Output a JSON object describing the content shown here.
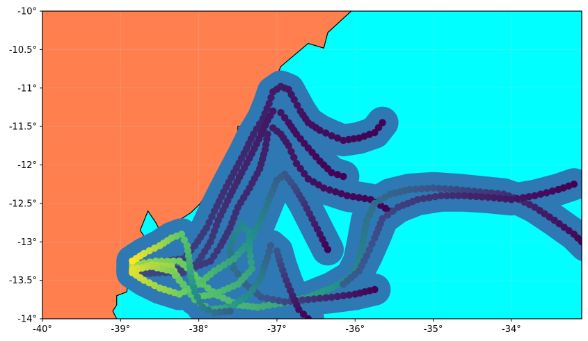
{
  "map": {
    "extent": {
      "lon": [
        -40,
        -33.1
      ],
      "lat": [
        -14,
        -10
      ]
    },
    "colors": {
      "land": "#ff7f4f",
      "ocean": "#00ffff",
      "coastline": "#000000",
      "buffer": "#2e78b4",
      "gridline": "#cccccc",
      "track_colormap": [
        "#440154",
        "#3b528b",
        "#21918c",
        "#5ec962",
        "#fde725"
      ]
    },
    "grid": true,
    "x_ticks": [
      {
        "value": -40,
        "label": "-40°"
      },
      {
        "value": -39,
        "label": "-39°"
      },
      {
        "value": -38,
        "label": "-38°"
      },
      {
        "value": -37,
        "label": "-37°"
      },
      {
        "value": -36,
        "label": "-36°"
      },
      {
        "value": -35,
        "label": "-35°"
      },
      {
        "value": -34,
        "label": "-34°"
      }
    ],
    "y_ticks": [
      {
        "value": -10,
        "label": "-10°"
      },
      {
        "value": -10.5,
        "label": "-10.5°"
      },
      {
        "value": -11,
        "label": "-11°"
      },
      {
        "value": -11.5,
        "label": "-11.5°"
      },
      {
        "value": -12,
        "label": "-12°"
      },
      {
        "value": -12.5,
        "label": "-12.5°"
      },
      {
        "value": -13,
        "label": "-13°"
      },
      {
        "value": -13.5,
        "label": "-13.5°"
      },
      {
        "value": -14,
        "label": "-14°"
      }
    ],
    "coastline": [
      [
        -36.05,
        -10.0
      ],
      [
        -36.35,
        -10.28
      ],
      [
        -36.4,
        -10.48
      ],
      [
        -36.6,
        -10.42
      ],
      [
        -36.95,
        -10.72
      ],
      [
        -37.05,
        -10.95
      ],
      [
        -37.05,
        -11.05
      ],
      [
        -37.12,
        -11.08
      ],
      [
        -37.2,
        -11.35
      ],
      [
        -37.35,
        -11.52
      ],
      [
        -37.5,
        -11.5
      ],
      [
        -37.5,
        -11.6
      ],
      [
        -37.62,
        -11.82
      ],
      [
        -37.8,
        -12.2
      ],
      [
        -37.98,
        -12.5
      ],
      [
        -38.1,
        -12.62
      ],
      [
        -38.3,
        -12.75
      ],
      [
        -38.4,
        -12.9
      ],
      [
        -38.5,
        -12.85
      ],
      [
        -38.55,
        -12.75
      ],
      [
        -38.65,
        -12.6
      ],
      [
        -38.75,
        -12.85
      ],
      [
        -38.62,
        -13.05
      ],
      [
        -38.72,
        -13.05
      ],
      [
        -38.8,
        -13.12
      ],
      [
        -38.88,
        -13.22
      ],
      [
        -38.92,
        -13.38
      ],
      [
        -39.05,
        -13.38
      ],
      [
        -38.9,
        -13.4
      ],
      [
        -38.92,
        -13.65
      ],
      [
        -39.05,
        -13.7
      ],
      [
        -39.05,
        -13.82
      ],
      [
        -39.1,
        -13.9
      ],
      [
        -39.05,
        -14.0
      ]
    ]
  },
  "chart_data": {
    "type": "scatter",
    "x_range": [
      -40,
      -33.1
    ],
    "y_range": [
      -14,
      -10
    ],
    "grid": true,
    "title": "",
    "xlabel": "",
    "ylabel": "",
    "series": [
      {
        "color_start": 0.0,
        "color_end": 0.22,
        "points": [
          [
            -35.65,
            -11.45
          ],
          [
            -35.75,
            -11.58
          ],
          [
            -35.95,
            -11.65
          ],
          [
            -36.15,
            -11.68
          ],
          [
            -36.3,
            -11.62
          ],
          [
            -36.45,
            -11.55
          ],
          [
            -36.6,
            -11.45
          ],
          [
            -36.7,
            -11.3
          ],
          [
            -36.78,
            -11.15
          ],
          [
            -36.85,
            -11.02
          ],
          [
            -36.95,
            -10.98
          ],
          [
            -37.05,
            -11.05
          ],
          [
            -37.1,
            -11.2
          ],
          [
            -37.18,
            -11.4
          ],
          [
            -37.3,
            -11.6
          ],
          [
            -37.42,
            -11.85
          ],
          [
            -37.55,
            -12.1
          ],
          [
            -37.68,
            -12.35
          ],
          [
            -37.8,
            -12.6
          ],
          [
            -37.9,
            -12.82
          ],
          [
            -38.05,
            -13.05
          ],
          [
            -38.2,
            -13.22
          ],
          [
            -38.45,
            -13.25
          ],
          [
            -38.7,
            -13.3
          ],
          [
            -38.85,
            -13.35
          ]
        ]
      },
      {
        "color_start": 0.0,
        "color_end": 0.22,
        "points": [
          [
            -36.15,
            -12.15
          ],
          [
            -36.3,
            -12.1
          ],
          [
            -36.45,
            -11.95
          ],
          [
            -36.6,
            -11.78
          ],
          [
            -36.75,
            -11.6
          ],
          [
            -36.85,
            -11.45
          ],
          [
            -36.95,
            -11.32
          ],
          [
            -37.05,
            -11.3
          ],
          [
            -37.12,
            -11.42
          ],
          [
            -37.2,
            -11.6
          ],
          [
            -37.32,
            -11.85
          ],
          [
            -37.45,
            -12.1
          ],
          [
            -37.6,
            -12.4
          ],
          [
            -37.75,
            -12.72
          ],
          [
            -37.85,
            -13.0
          ],
          [
            -38.0,
            -13.25
          ],
          [
            -38.2,
            -13.4
          ],
          [
            -38.5,
            -13.4
          ],
          [
            -38.75,
            -13.42
          ]
        ]
      },
      {
        "color_start": 0.0,
        "color_end": 0.2,
        "points": [
          [
            -35.55,
            -12.6
          ],
          [
            -35.8,
            -12.45
          ],
          [
            -36.1,
            -12.4
          ],
          [
            -36.4,
            -12.3
          ],
          [
            -36.6,
            -12.18
          ],
          [
            -36.75,
            -11.98
          ],
          [
            -36.85,
            -11.75
          ],
          [
            -36.95,
            -11.6
          ],
          [
            -37.05,
            -11.52
          ],
          [
            -37.12,
            -11.6
          ],
          [
            -37.15,
            -11.8
          ],
          [
            -37.22,
            -12.05
          ],
          [
            -37.35,
            -12.3
          ],
          [
            -37.5,
            -12.55
          ],
          [
            -37.6,
            -12.82
          ],
          [
            -37.72,
            -13.05
          ],
          [
            -37.85,
            -13.25
          ],
          [
            -38.1,
            -13.35
          ],
          [
            -38.5,
            -13.35
          ]
        ]
      },
      {
        "color_start": 0.0,
        "color_end": 0.85,
        "points": [
          [
            -33.05,
            -13.05
          ],
          [
            -33.2,
            -12.9
          ],
          [
            -33.45,
            -12.72
          ],
          [
            -33.7,
            -12.55
          ],
          [
            -33.9,
            -12.45
          ],
          [
            -34.1,
            -12.38
          ],
          [
            -34.4,
            -12.35
          ],
          [
            -34.7,
            -12.32
          ],
          [
            -35.0,
            -12.3
          ],
          [
            -35.3,
            -12.32
          ],
          [
            -35.55,
            -12.38
          ],
          [
            -35.75,
            -12.5
          ],
          [
            -35.85,
            -12.72
          ],
          [
            -35.9,
            -13.0
          ],
          [
            -35.95,
            -13.25
          ],
          [
            -36.05,
            -13.45
          ],
          [
            -36.3,
            -13.6
          ],
          [
            -36.6,
            -13.72
          ],
          [
            -36.95,
            -13.8
          ],
          [
            -37.25,
            -13.85
          ],
          [
            -37.5,
            -13.82
          ],
          [
            -37.75,
            -13.7
          ],
          [
            -37.95,
            -13.55
          ],
          [
            -38.1,
            -13.38
          ],
          [
            -38.25,
            -13.25
          ],
          [
            -38.55,
            -13.25
          ],
          [
            -38.85,
            -13.3
          ]
        ]
      },
      {
        "color_start": 0.0,
        "color_end": 0.3,
        "points": [
          [
            -33.2,
            -12.25
          ],
          [
            -33.4,
            -12.32
          ],
          [
            -33.7,
            -12.4
          ],
          [
            -34.0,
            -12.45
          ],
          [
            -34.3,
            -12.42
          ],
          [
            -34.6,
            -12.4
          ],
          [
            -34.9,
            -12.4
          ],
          [
            -35.2,
            -12.45
          ],
          [
            -35.45,
            -12.55
          ],
          [
            -35.65,
            -12.7
          ],
          [
            -35.75,
            -12.95
          ],
          [
            -35.85,
            -13.18
          ],
          [
            -35.95,
            -13.38
          ],
          [
            -36.15,
            -13.55
          ]
        ]
      },
      {
        "color_start": 0.0,
        "color_end": 0.95,
        "points": [
          [
            -35.75,
            -13.62
          ],
          [
            -36.0,
            -13.68
          ],
          [
            -36.3,
            -13.72
          ],
          [
            -36.6,
            -13.75
          ],
          [
            -36.9,
            -13.78
          ],
          [
            -37.2,
            -13.72
          ],
          [
            -37.4,
            -13.55
          ],
          [
            -37.55,
            -13.35
          ],
          [
            -37.6,
            -13.12
          ],
          [
            -37.55,
            -12.92
          ],
          [
            -37.45,
            -12.78
          ],
          [
            -37.35,
            -12.88
          ],
          [
            -37.35,
            -13.1
          ],
          [
            -37.32,
            -13.35
          ],
          [
            -37.5,
            -13.55
          ],
          [
            -37.8,
            -13.68
          ],
          [
            -38.05,
            -13.72
          ],
          [
            -38.25,
            -13.5
          ],
          [
            -38.35,
            -13.32
          ],
          [
            -38.6,
            -13.3
          ],
          [
            -38.85,
            -13.38
          ]
        ]
      },
      {
        "color_start": 0.0,
        "color_end": 0.95,
        "points": [
          [
            -36.6,
            -14.0
          ],
          [
            -36.72,
            -13.88
          ],
          [
            -36.8,
            -13.7
          ],
          [
            -36.88,
            -13.5
          ],
          [
            -36.95,
            -13.3
          ],
          [
            -37.0,
            -13.12
          ],
          [
            -37.08,
            -13.05
          ],
          [
            -37.12,
            -13.2
          ],
          [
            -37.2,
            -13.45
          ],
          [
            -37.35,
            -13.68
          ],
          [
            -37.6,
            -13.85
          ],
          [
            -37.85,
            -13.88
          ],
          [
            -38.05,
            -13.75
          ],
          [
            -38.2,
            -13.55
          ],
          [
            -38.35,
            -13.38
          ],
          [
            -38.6,
            -13.32
          ],
          [
            -38.85,
            -13.35
          ]
        ]
      },
      {
        "color_start": 0.0,
        "color_end": 0.95,
        "points": [
          [
            -36.35,
            -13.1
          ],
          [
            -36.45,
            -12.9
          ],
          [
            -36.55,
            -12.7
          ],
          [
            -36.65,
            -12.5
          ],
          [
            -36.78,
            -12.28
          ],
          [
            -36.9,
            -12.12
          ],
          [
            -37.0,
            -12.2
          ],
          [
            -37.1,
            -12.45
          ],
          [
            -37.22,
            -12.75
          ],
          [
            -37.35,
            -13.0
          ],
          [
            -37.55,
            -13.22
          ],
          [
            -37.8,
            -13.38
          ],
          [
            -38.0,
            -13.55
          ],
          [
            -38.25,
            -13.68
          ],
          [
            -38.5,
            -13.6
          ],
          [
            -38.7,
            -13.5
          ],
          [
            -38.85,
            -13.4
          ]
        ]
      },
      {
        "color_start": 0.3,
        "color_end": 1.0,
        "points": [
          [
            -37.6,
            -13.9
          ],
          [
            -37.8,
            -13.92
          ],
          [
            -37.95,
            -13.85
          ],
          [
            -38.05,
            -13.65
          ],
          [
            -38.1,
            -13.45
          ],
          [
            -38.12,
            -13.25
          ],
          [
            -38.15,
            -13.05
          ],
          [
            -38.22,
            -12.9
          ],
          [
            -38.35,
            -12.95
          ],
          [
            -38.5,
            -13.05
          ],
          [
            -38.7,
            -13.15
          ],
          [
            -38.85,
            -13.25
          ]
        ]
      }
    ]
  }
}
